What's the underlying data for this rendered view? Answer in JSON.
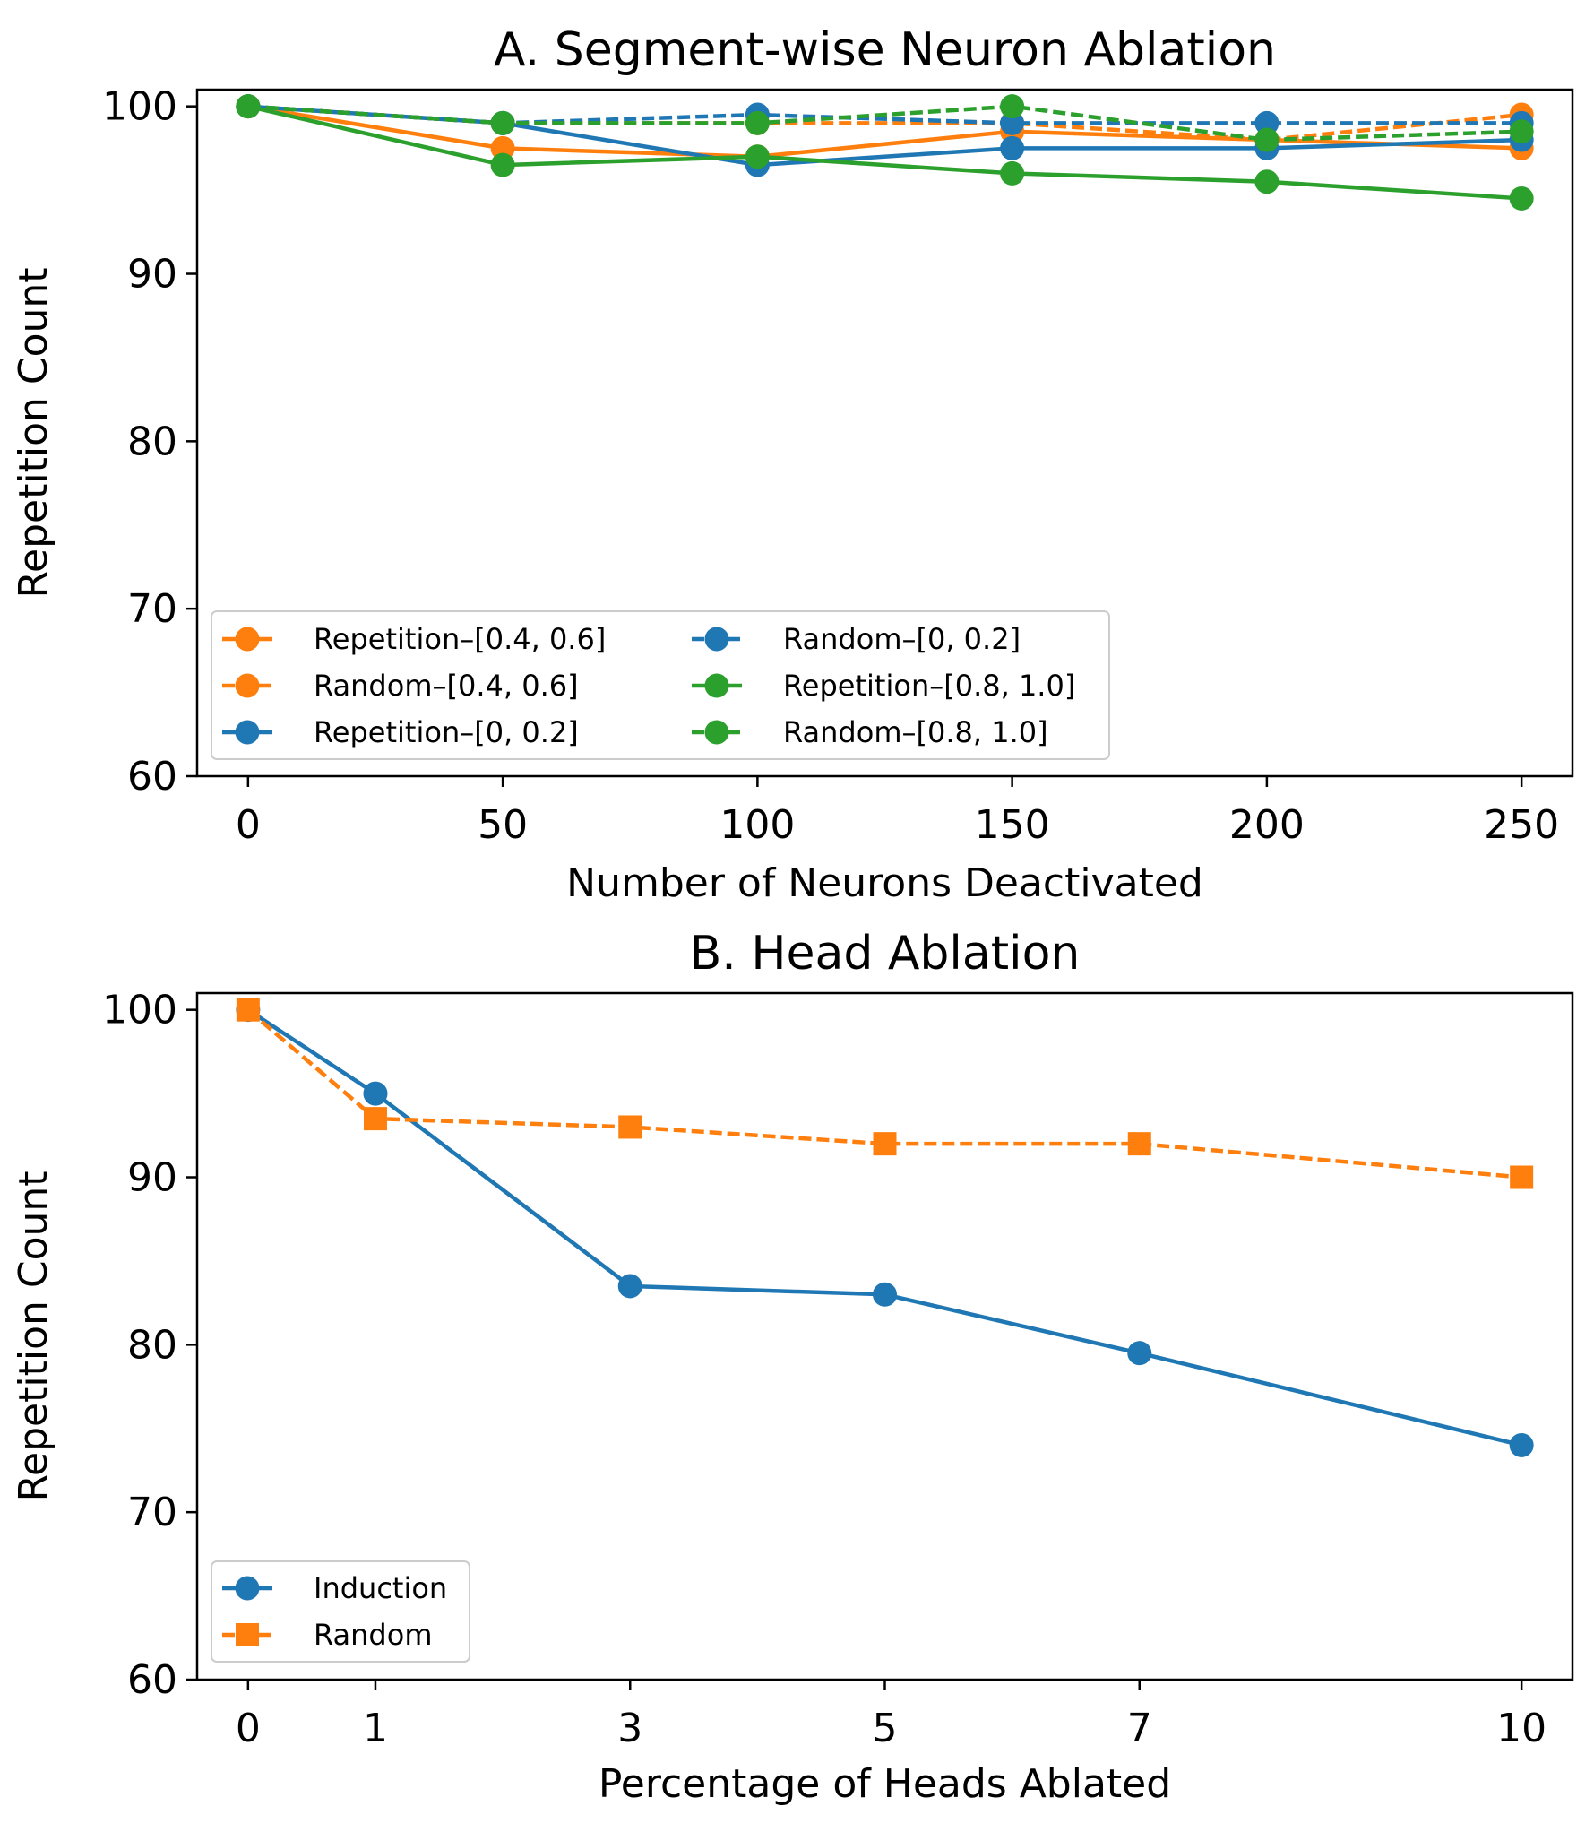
{
  "chart_data": [
    {
      "type": "line",
      "title": "A. Segment-wise Neuron Ablation",
      "xlabel": "Number of Neurons Deactivated",
      "ylabel": "Repetition Count",
      "xlim": [
        -10,
        260
      ],
      "ylim": [
        60,
        101
      ],
      "xticks": [
        0,
        50,
        100,
        150,
        200,
        250
      ],
      "yticks": [
        60,
        70,
        80,
        90,
        100
      ],
      "x": [
        0,
        50,
        100,
        150,
        200,
        250
      ],
      "legend_position": "lower-left",
      "legend_columns": 2,
      "series": [
        {
          "name": "Repetition–[0.4, 0.6]",
          "color": "#ff7f0e",
          "style": "solid",
          "marker": "circle",
          "values": [
            100,
            97.5,
            97.0,
            98.5,
            98.0,
            97.5
          ]
        },
        {
          "name": "Random–[0.4, 0.6]",
          "color": "#ff7f0e",
          "style": "dashed",
          "marker": "circle",
          "values": [
            100,
            99.0,
            99.0,
            99.0,
            98.0,
            99.5
          ]
        },
        {
          "name": "Repetition–[0, 0.2]",
          "color": "#1f77b4",
          "style": "solid",
          "marker": "circle",
          "values": [
            100,
            99.0,
            96.5,
            97.5,
            97.5,
            98.0
          ]
        },
        {
          "name": "Random–[0, 0.2]",
          "color": "#1f77b4",
          "style": "dashed",
          "marker": "circle",
          "values": [
            100,
            99.0,
            99.5,
            99.0,
            99.0,
            99.0
          ]
        },
        {
          "name": "Repetition–[0.8, 1.0]",
          "color": "#2ca02c",
          "style": "solid",
          "marker": "circle",
          "values": [
            100,
            96.5,
            97.0,
            96.0,
            95.5,
            94.5
          ]
        },
        {
          "name": "Random–[0.8, 1.0]",
          "color": "#2ca02c",
          "style": "dashed",
          "marker": "circle",
          "values": [
            100,
            99.0,
            99.0,
            100.0,
            98.0,
            98.5
          ]
        }
      ]
    },
    {
      "type": "line",
      "title": "B. Head Ablation",
      "xlabel": "Percentage of Heads Ablated",
      "ylabel": "Repetition Count",
      "xlim": [
        -0.4,
        10.4
      ],
      "ylim": [
        60,
        101
      ],
      "xticks": [
        0,
        1,
        3,
        5,
        7,
        10
      ],
      "yticks": [
        60,
        70,
        80,
        90,
        100
      ],
      "x": [
        0,
        1,
        3,
        5,
        7,
        10
      ],
      "legend_position": "lower-left",
      "legend_columns": 1,
      "series": [
        {
          "name": "Induction",
          "color": "#1f77b4",
          "style": "solid",
          "marker": "circle",
          "values": [
            100,
            95.0,
            83.5,
            83.0,
            79.5,
            74.0
          ]
        },
        {
          "name": "Random",
          "color": "#ff7f0e",
          "style": "dashed",
          "marker": "square",
          "values": [
            100,
            93.5,
            93.0,
            92.0,
            92.0,
            90.0
          ]
        }
      ]
    }
  ]
}
